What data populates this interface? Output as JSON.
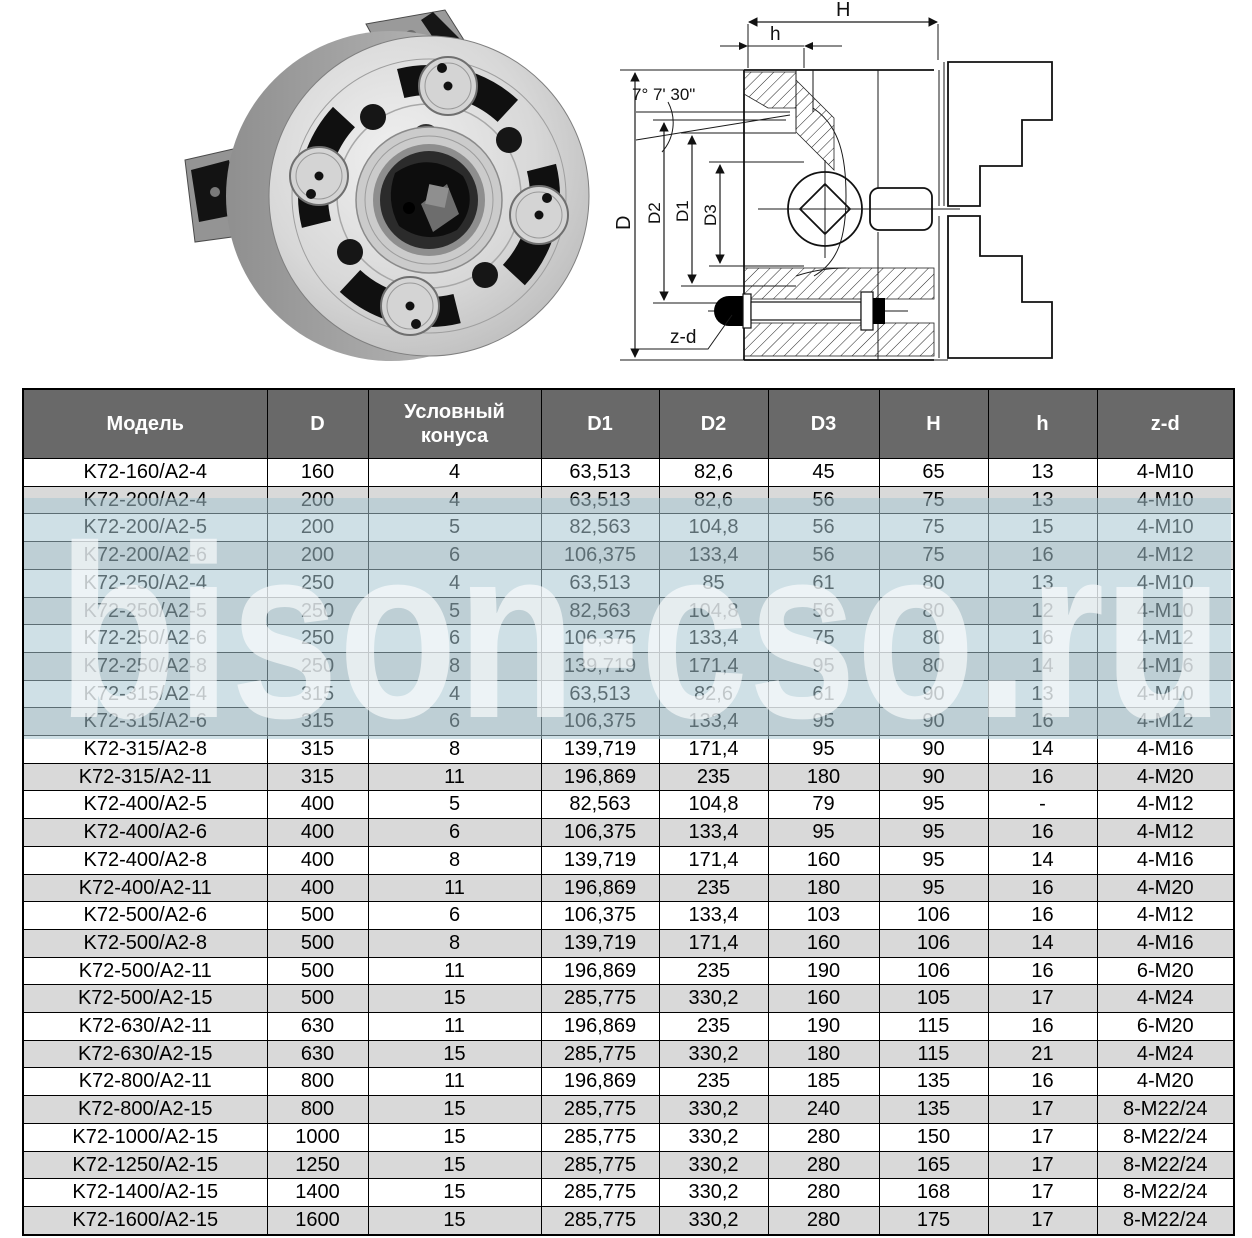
{
  "figures": {
    "photo": {
      "description": "three-jaw lathe chuck, rear view"
    },
    "diagram": {
      "labels": {
        "H": "H",
        "h": "h",
        "angle": "7° 7' 30\"",
        "D": "D",
        "D2": "D2",
        "D1": "D1",
        "D3": "D3",
        "zd": "z-d"
      }
    }
  },
  "watermark": {
    "text": "bison-cso.ru",
    "band_color": "#a7c7d1",
    "band_opacity": 0.55,
    "text_color": "#ffffff",
    "text_opacity": 0.62
  },
  "table": {
    "header_bg": "#696969",
    "header_text_color": "#ffffff",
    "row_alt_color": "#d9d9d9",
    "border_color": "#000000",
    "columns": [
      "Модель",
      "D",
      "Условный конуса",
      "D1",
      "D2",
      "D3",
      "H",
      "h",
      "z-d"
    ],
    "rows": [
      [
        "K72-160/A2-4",
        "160",
        "4",
        "63,513",
        "82,6",
        "45",
        "65",
        "13",
        "4-M10"
      ],
      [
        "K72-200/A2-4",
        "200",
        "4",
        "63,513",
        "82,6",
        "56",
        "75",
        "13",
        "4-M10"
      ],
      [
        "K72-200/A2-5",
        "200",
        "5",
        "82,563",
        "104,8",
        "56",
        "75",
        "15",
        "4-M10"
      ],
      [
        "K72-200/A2-6",
        "200",
        "6",
        "106,375",
        "133,4",
        "56",
        "75",
        "16",
        "4-M12"
      ],
      [
        "K72-250/A2-4",
        "250",
        "4",
        "63,513",
        "85",
        "61",
        "80",
        "13",
        "4-M10"
      ],
      [
        "K72-250/A2-5",
        "250",
        "5",
        "82,563",
        "104,8",
        "56",
        "80",
        "12",
        "4-M10"
      ],
      [
        "K72-250/A2-6",
        "250",
        "6",
        "106,375",
        "133,4",
        "75",
        "80",
        "16",
        "4-M12"
      ],
      [
        "K72-250/A2-8",
        "250",
        "8",
        "139,719",
        "171,4",
        "95",
        "80",
        "14",
        "4-M16"
      ],
      [
        "K72-315/A2-4",
        "315",
        "4",
        "63,513",
        "82,6",
        "61",
        "90",
        "13",
        "4-M10"
      ],
      [
        "K72-315/A2-6",
        "315",
        "6",
        "106,375",
        "133,4",
        "95",
        "90",
        "16",
        "4-M12"
      ],
      [
        "K72-315/A2-8",
        "315",
        "8",
        "139,719",
        "171,4",
        "95",
        "90",
        "14",
        "4-M16"
      ],
      [
        "K72-315/A2-11",
        "315",
        "11",
        "196,869",
        "235",
        "180",
        "90",
        "16",
        "4-M20"
      ],
      [
        "K72-400/A2-5",
        "400",
        "5",
        "82,563",
        "104,8",
        "79",
        "95",
        "-",
        "4-M12"
      ],
      [
        "K72-400/A2-6",
        "400",
        "6",
        "106,375",
        "133,4",
        "95",
        "95",
        "16",
        "4-M12"
      ],
      [
        "K72-400/A2-8",
        "400",
        "8",
        "139,719",
        "171,4",
        "160",
        "95",
        "14",
        "4-M16"
      ],
      [
        "K72-400/A2-11",
        "400",
        "11",
        "196,869",
        "235",
        "180",
        "95",
        "16",
        "4-M20"
      ],
      [
        "K72-500/A2-6",
        "500",
        "6",
        "106,375",
        "133,4",
        "103",
        "106",
        "16",
        "4-M12"
      ],
      [
        "K72-500/A2-8",
        "500",
        "8",
        "139,719",
        "171,4",
        "160",
        "106",
        "14",
        "4-M16"
      ],
      [
        "K72-500/A2-11",
        "500",
        "11",
        "196,869",
        "235",
        "190",
        "106",
        "16",
        "6-M20"
      ],
      [
        "K72-500/A2-15",
        "500",
        "15",
        "285,775",
        "330,2",
        "160",
        "105",
        "17",
        "4-M24"
      ],
      [
        "K72-630/A2-11",
        "630",
        "11",
        "196,869",
        "235",
        "190",
        "115",
        "16",
        "6-M20"
      ],
      [
        "K72-630/A2-15",
        "630",
        "15",
        "285,775",
        "330,2",
        "180",
        "115",
        "21",
        "4-M24"
      ],
      [
        "K72-800/A2-11",
        "800",
        "11",
        "196,869",
        "235",
        "185",
        "135",
        "16",
        "4-M20"
      ],
      [
        "K72-800/A2-15",
        "800",
        "15",
        "285,775",
        "330,2",
        "240",
        "135",
        "17",
        "8-M22/24"
      ],
      [
        "K72-1000/A2-15",
        "1000",
        "15",
        "285,775",
        "330,2",
        "280",
        "150",
        "17",
        "8-M22/24"
      ],
      [
        "K72-1250/A2-15",
        "1250",
        "15",
        "285,775",
        "330,2",
        "280",
        "165",
        "17",
        "8-M22/24"
      ],
      [
        "K72-1400/A2-15",
        "1400",
        "15",
        "285,775",
        "330,2",
        "280",
        "168",
        "17",
        "8-M22/24"
      ],
      [
        "K72-1600/A2-15",
        "1600",
        "15",
        "285,775",
        "330,2",
        "280",
        "175",
        "17",
        "8-M22/24"
      ]
    ]
  }
}
